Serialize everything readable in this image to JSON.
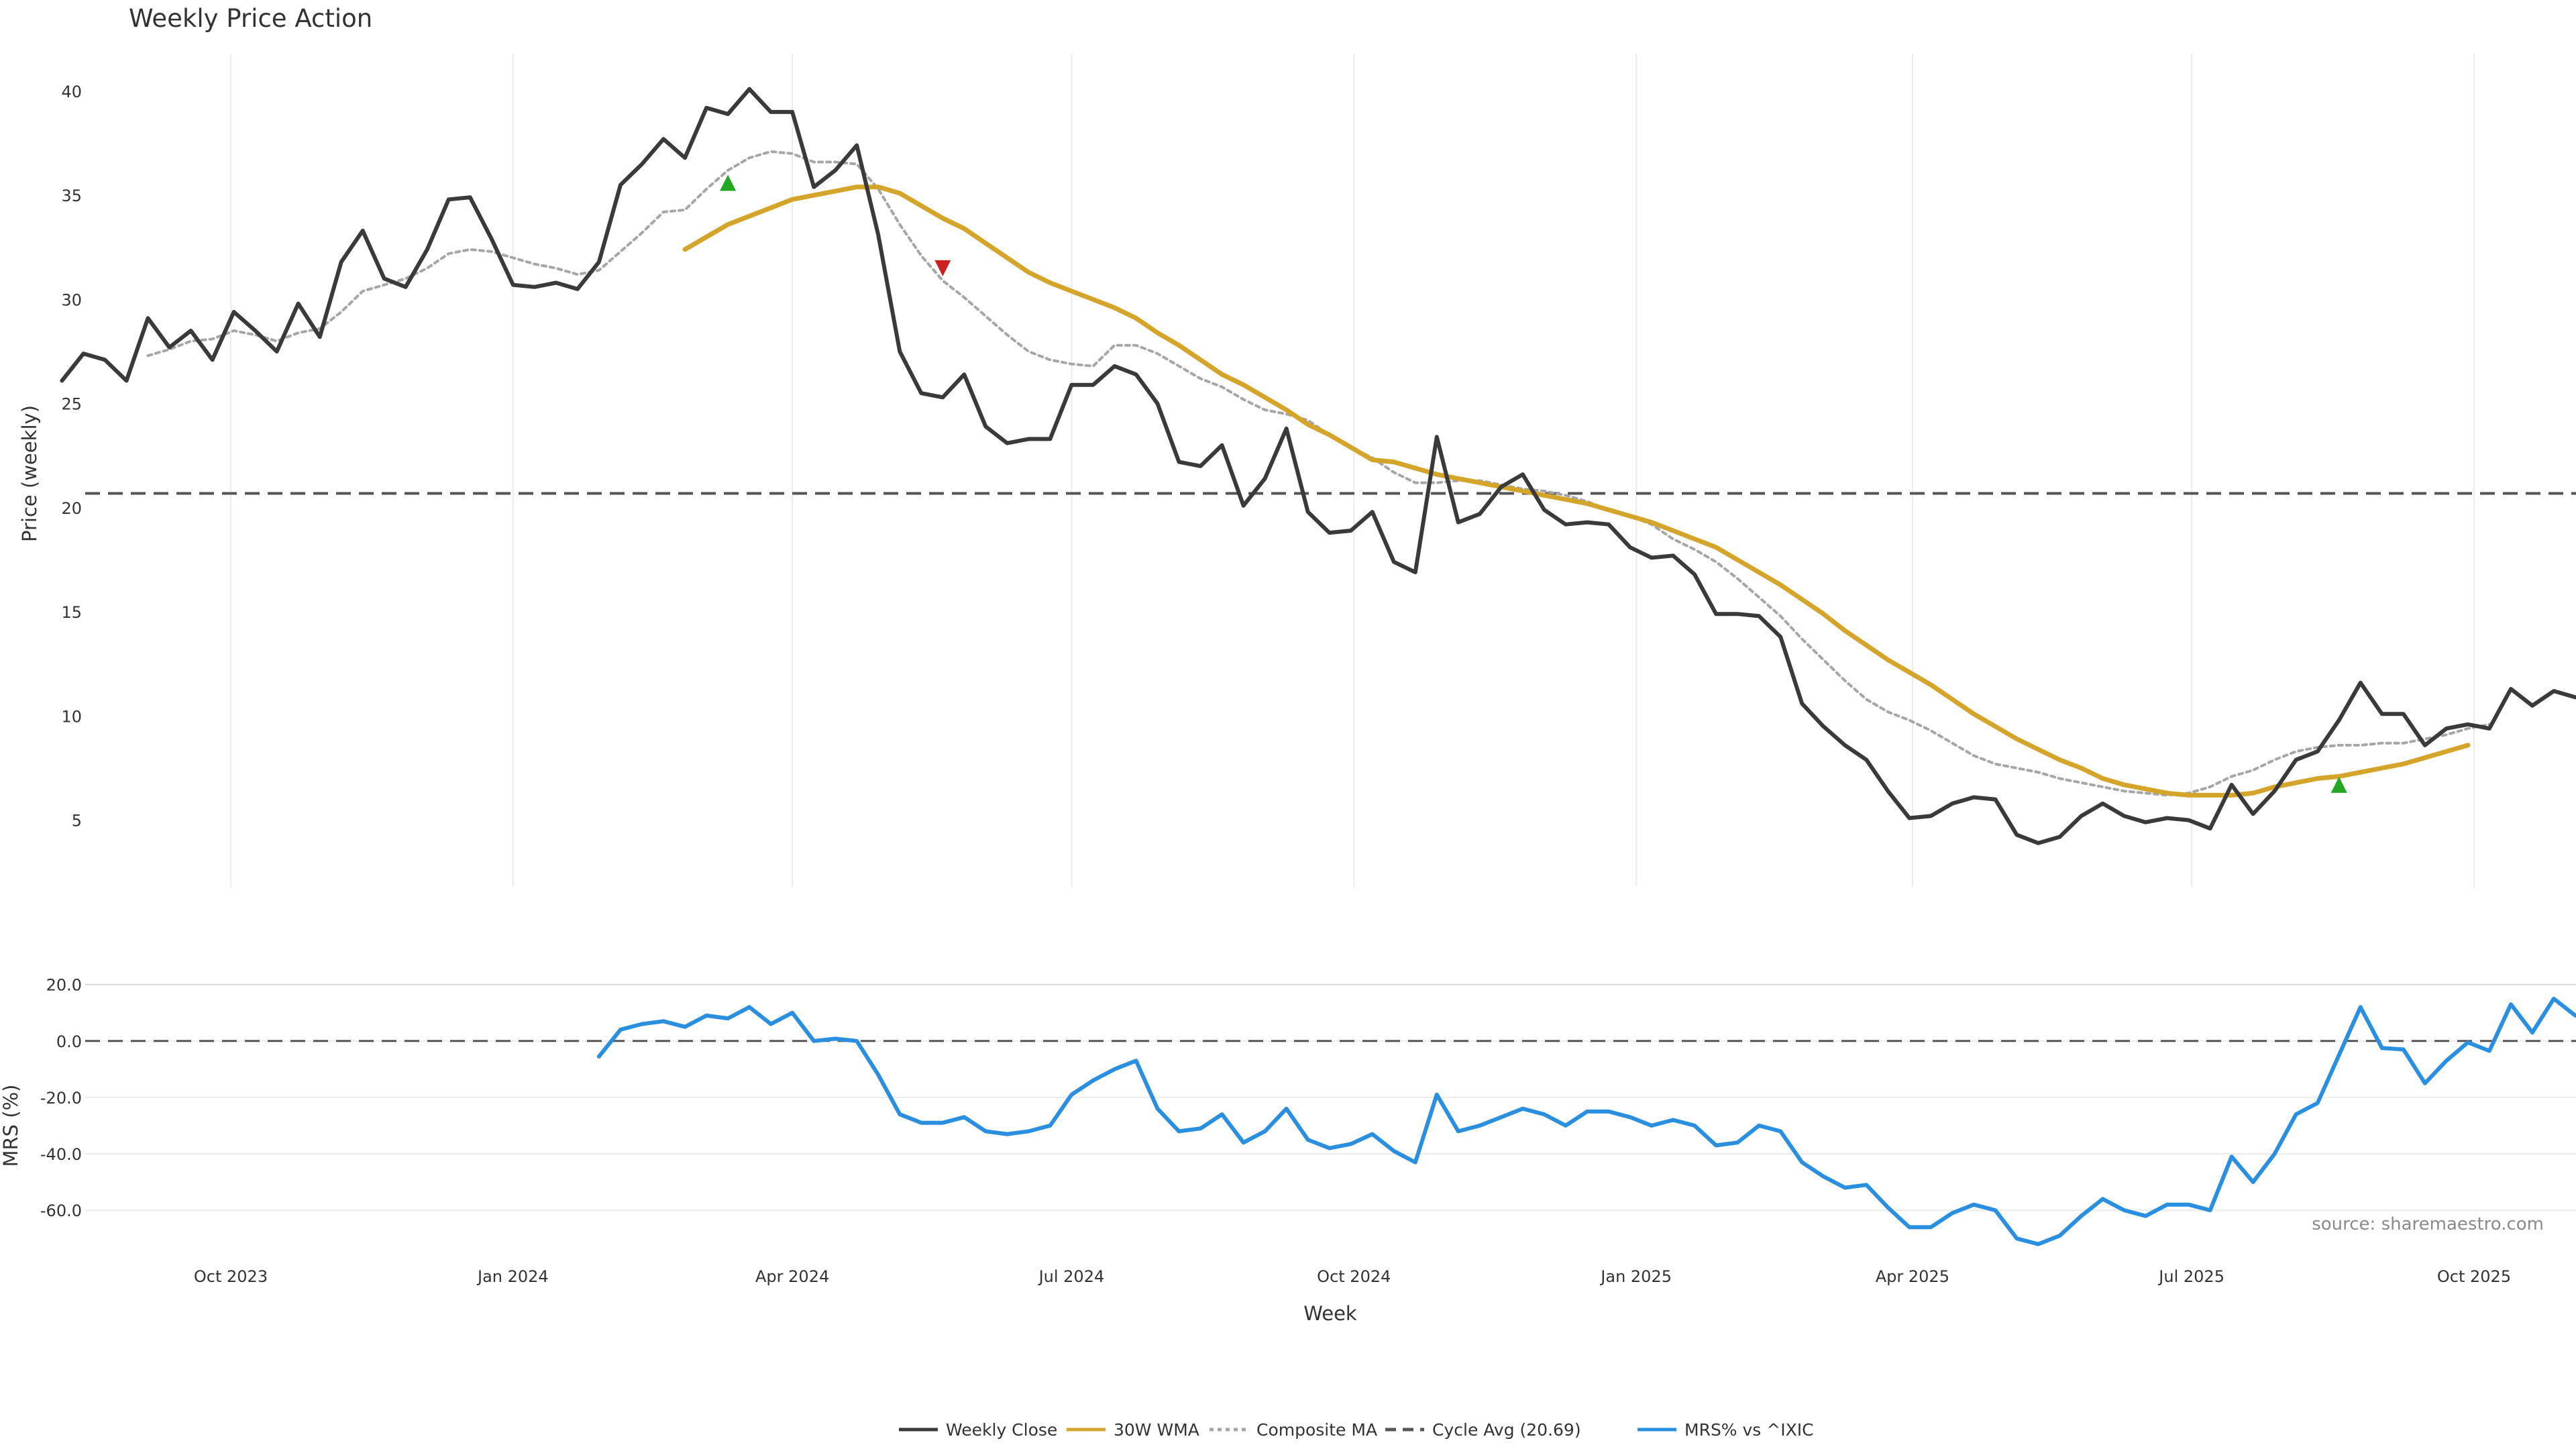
{
  "chart_data": {
    "type": "line",
    "title": "Weekly Price Action",
    "source_text": "source: sharemaestro.com",
    "xlabel": "Week",
    "x_start": "2023-08-07",
    "x_step_days": 7,
    "x_ticks": [
      {
        "date": "2023-10-01",
        "label": "Oct 2023"
      },
      {
        "date": "2024-01-01",
        "label": "Jan 2024"
      },
      {
        "date": "2024-04-01",
        "label": "Apr 2024"
      },
      {
        "date": "2024-07-01",
        "label": "Jul 2024"
      },
      {
        "date": "2024-10-01",
        "label": "Oct 2024"
      },
      {
        "date": "2025-01-01",
        "label": "Jan 2025"
      },
      {
        "date": "2025-04-01",
        "label": "Apr 2025"
      },
      {
        "date": "2025-07-01",
        "label": "Jul 2025"
      },
      {
        "date": "2025-10-01",
        "label": "Oct 2025"
      }
    ],
    "price_panel": {
      "ylabel": "Price (weekly)",
      "ylim": [
        1.8,
        41.8
      ],
      "yticks": [
        5,
        10,
        15,
        20,
        25,
        30,
        35,
        40
      ],
      "cycle_avg": 20.69,
      "series": [
        {
          "name": "Weekly Close",
          "color": "#3a3a3a",
          "style": "solid",
          "start_index": 0,
          "values": [
            26.1,
            27.4,
            27.1,
            26.1,
            29.1,
            27.7,
            28.5,
            27.1,
            29.4,
            28.5,
            27.5,
            29.8,
            28.2,
            31.8,
            33.3,
            31.0,
            30.6,
            32.4,
            34.8,
            34.9,
            32.9,
            30.7,
            30.6,
            30.8,
            30.5,
            31.8,
            35.5,
            36.5,
            37.7,
            36.8,
            39.2,
            38.9,
            40.1,
            39.0,
            39.0,
            35.4,
            36.2,
            37.4,
            33.1,
            27.5,
            25.5,
            25.3,
            26.4,
            23.9,
            23.1,
            23.3,
            23.3,
            25.9,
            25.9,
            26.8,
            26.4,
            25.0,
            22.2,
            22.0,
            23.0,
            20.1,
            21.4,
            23.8,
            19.8,
            18.8,
            18.9,
            19.8,
            17.4,
            16.9,
            23.4,
            19.3,
            19.7,
            21.0,
            21.6,
            19.9,
            19.2,
            19.3,
            19.2,
            18.1,
            17.6,
            17.7,
            16.8,
            14.9,
            14.9,
            14.8,
            13.8,
            10.6,
            9.5,
            8.6,
            7.9,
            6.4,
            5.1,
            5.2,
            5.8,
            6.1,
            6.0,
            4.3,
            3.9,
            4.2,
            5.2,
            5.8,
            5.2,
            4.9,
            5.1,
            5.0,
            4.6,
            6.7,
            5.3,
            6.4,
            7.9,
            8.3,
            9.8,
            11.6,
            10.1,
            10.1,
            8.6,
            9.4,
            9.6,
            9.4,
            11.3,
            10.5,
            11.2,
            10.9
          ]
        },
        {
          "name": "30W WMA",
          "color": "#d4a52a",
          "style": "solid",
          "start_index": 29,
          "values": [
            32.4,
            33.0,
            33.6,
            34.0,
            34.4,
            34.8,
            35.0,
            35.2,
            35.4,
            35.4,
            35.1,
            34.5,
            33.9,
            33.4,
            32.7,
            32.0,
            31.3,
            30.8,
            30.4,
            30.0,
            29.6,
            29.1,
            28.4,
            27.8,
            27.1,
            26.4,
            25.9,
            25.3,
            24.7,
            24.0,
            23.5,
            22.9,
            22.3,
            22.2,
            21.9,
            21.6,
            21.4,
            21.2,
            21.0,
            20.8,
            20.6,
            20.4,
            20.2,
            19.9,
            19.6,
            19.3,
            18.9,
            18.5,
            18.1,
            17.5,
            16.9,
            16.3,
            15.6,
            14.9,
            14.1,
            13.4,
            12.7,
            12.1,
            11.5,
            10.8,
            10.1,
            9.5,
            8.9,
            8.4,
            7.9,
            7.5,
            7.0,
            6.7,
            6.5,
            6.3,
            6.2,
            6.2,
            6.2,
            6.3,
            6.6,
            6.8,
            7.0,
            7.1,
            7.3,
            7.5,
            7.7,
            8.0,
            8.3,
            8.6
          ]
        },
        {
          "name": "Composite MA",
          "color": "#a6a6a6",
          "style": "dotted",
          "start_index": 4,
          "values": [
            27.3,
            27.6,
            28.0,
            28.1,
            28.5,
            28.3,
            28.0,
            28.4,
            28.6,
            29.4,
            30.4,
            30.7,
            31.0,
            31.5,
            32.2,
            32.4,
            32.3,
            32.0,
            31.7,
            31.5,
            31.2,
            31.4,
            32.3,
            33.2,
            34.2,
            34.3,
            35.3,
            36.2,
            36.8,
            37.1,
            37.0,
            36.6,
            36.6,
            36.5,
            35.3,
            33.6,
            32.1,
            30.9,
            30.1,
            29.2,
            28.3,
            27.5,
            27.1,
            26.9,
            26.8,
            27.8,
            27.8,
            27.4,
            26.8,
            26.2,
            25.8,
            25.2,
            24.7,
            24.5,
            24.2,
            23.5,
            22.9,
            22.4,
            21.7,
            21.2,
            21.2,
            21.3,
            21.3,
            21.1,
            20.9,
            20.8,
            20.6,
            20.3,
            19.9,
            19.6,
            19.2,
            18.5,
            18.0,
            17.4,
            16.6,
            15.7,
            14.8,
            13.7,
            12.7,
            11.7,
            10.8,
            10.2,
            9.8,
            9.3,
            8.7,
            8.1,
            7.7,
            7.5,
            7.3,
            7.0,
            6.8,
            6.6,
            6.4,
            6.3,
            6.2,
            6.3,
            6.6,
            7.1,
            7.4,
            7.9,
            8.3,
            8.5,
            8.6,
            8.6,
            8.7,
            8.7,
            8.9,
            9.1,
            9.4,
            9.6
          ]
        }
      ],
      "signals": [
        {
          "type": "buy",
          "index": 31,
          "value": 35.6,
          "color": "#22a722"
        },
        {
          "type": "sell",
          "index": 41,
          "value": 31.5,
          "color": "#cc1f1f"
        },
        {
          "type": "buy",
          "index": 106,
          "value": 6.7,
          "color": "#22a722"
        }
      ]
    },
    "mrs_panel": {
      "ylabel": "MRS (%)",
      "ylim": [
        -69,
        23
      ],
      "yticks": [
        20.0,
        0.0,
        -20.0,
        -40.0,
        -60.0
      ],
      "ytick_labels": [
        "20.0",
        "0.0",
        "-20.0",
        "-40.0",
        "-60.0"
      ],
      "zero_line": 0,
      "series": [
        {
          "name": "MRS% vs ^IXIC",
          "color": "#2b8fdf",
          "style": "solid",
          "start_index": 25,
          "values": [
            -5.5,
            4.0,
            6.0,
            7.0,
            5.0,
            9.0,
            8.0,
            12.0,
            6.0,
            10.0,
            0.0,
            0.8,
            0.0,
            -12.0,
            -26.0,
            -29.0,
            -29.0,
            -27.0,
            -32.0,
            -33.0,
            -32.0,
            -30.0,
            -19.0,
            -14.0,
            -10.0,
            -7.0,
            -24.0,
            -32.0,
            -31.0,
            -26.0,
            -36.0,
            -32.0,
            -24.0,
            -35.0,
            -38.0,
            -36.5,
            -33.0,
            -39.0,
            -43.0,
            -19.0,
            -32.0,
            -30.0,
            -27.0,
            -24.0,
            -26.0,
            -30.0,
            -25.0,
            -25.0,
            -27.0,
            -30.0,
            -28.0,
            -30.0,
            -37.0,
            -36.0,
            -30.0,
            -32.0,
            -43.0,
            -48.0,
            -52.0,
            -51.0,
            -59.0,
            -66.0,
            -66.0,
            -61.0,
            -58.0,
            -60.0,
            -70.0,
            -72.0,
            -69.0,
            -62.0,
            -56.0,
            -60.0,
            -62.0,
            -58.0,
            -58.0,
            -60.0,
            -41.0,
            -50.0,
            -40.0,
            -26.0,
            -22.0,
            -5.0,
            12.0,
            -2.5,
            -3.0,
            -15.0,
            -7.0,
            -0.5,
            -3.5,
            13.0,
            3.0,
            15.0,
            9.0
          ]
        }
      ]
    },
    "legend": {
      "placement": "bottom-center",
      "entries": [
        {
          "label": "Weekly Close",
          "color": "#3a3a3a",
          "style": "solid"
        },
        {
          "label": "30W WMA",
          "color": "#d4a52a",
          "style": "solid"
        },
        {
          "label": "Composite MA",
          "color": "#a6a6a6",
          "style": "dotted"
        },
        {
          "label": "Cycle Avg (20.69)",
          "color": "#555555",
          "style": "dashed"
        },
        {
          "label": "MRS% vs ^IXIC",
          "color": "#2b8fdf",
          "style": "solid"
        }
      ]
    }
  }
}
